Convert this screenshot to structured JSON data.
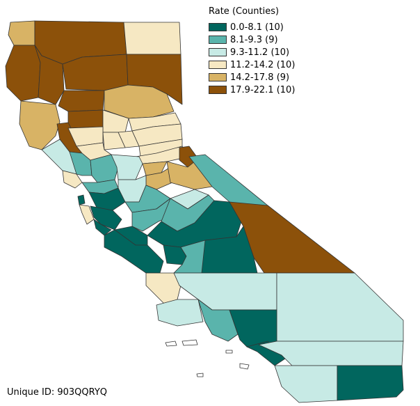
{
  "legend": {
    "title": "Rate (Counties)",
    "items": [
      {
        "label": "0.0-8.1 (10)",
        "color": "#01665e"
      },
      {
        "label": "8.1-9.3 (9)",
        "color": "#5ab4ac"
      },
      {
        "label": "9.3-11.2 (10)",
        "color": "#c7eae5"
      },
      {
        "label": "11.2-14.2 (10)",
        "color": "#f6e8c3"
      },
      {
        "label": "14.2-17.8 (9)",
        "color": "#d8b365"
      },
      {
        "label": "17.9-22.1 (10)",
        "color": "#8c510a"
      }
    ]
  },
  "footer": {
    "unique_id": "Unique ID: 903QQRYQ"
  }
}
